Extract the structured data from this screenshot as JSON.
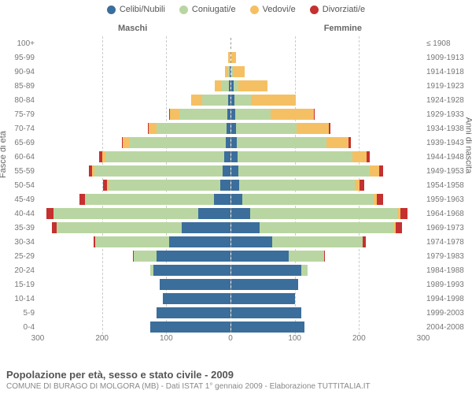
{
  "legend": [
    {
      "label": "Celibi/Nubili",
      "color": "#3b6e9b"
    },
    {
      "label": "Coniugati/e",
      "color": "#b9d6a2"
    },
    {
      "label": "Vedovi/e",
      "color": "#f5c063"
    },
    {
      "label": "Divorziati/e",
      "color": "#c53030"
    }
  ],
  "headers": {
    "male": "Maschi",
    "female": "Femmine"
  },
  "ylabels": {
    "left": "Fasce di età",
    "right": "Anni di nascita"
  },
  "xmax": 300,
  "xticks": [
    300,
    200,
    100,
    0,
    100,
    200,
    300
  ],
  "colors": {
    "single": "#3b6e9b",
    "married": "#b9d6a2",
    "widowed": "#f5c063",
    "divorced": "#c53030",
    "grid": "#cccccc",
    "axis_dash": "#999999",
    "background": "#ffffff"
  },
  "rows": [
    {
      "age": "100+",
      "year": "≤ 1908",
      "m": {
        "s": 0,
        "m": 0,
        "w": 0,
        "d": 0
      },
      "f": {
        "s": 0,
        "m": 0,
        "w": 0,
        "d": 0
      }
    },
    {
      "age": "95-99",
      "year": "1909-1913",
      "m": {
        "s": 0,
        "m": 0,
        "w": 3,
        "d": 0
      },
      "f": {
        "s": 0,
        "m": 0,
        "w": 8,
        "d": 0
      }
    },
    {
      "age": "90-94",
      "year": "1914-1918",
      "m": {
        "s": 1,
        "m": 2,
        "w": 5,
        "d": 0
      },
      "f": {
        "s": 1,
        "m": 2,
        "w": 18,
        "d": 0
      }
    },
    {
      "age": "85-89",
      "year": "1919-1923",
      "m": {
        "s": 2,
        "m": 12,
        "w": 10,
        "d": 0
      },
      "f": {
        "s": 4,
        "m": 8,
        "w": 45,
        "d": 0
      }
    },
    {
      "age": "80-84",
      "year": "1924-1928",
      "m": {
        "s": 3,
        "m": 40,
        "w": 18,
        "d": 0
      },
      "f": {
        "s": 6,
        "m": 25,
        "w": 70,
        "d": 0
      }
    },
    {
      "age": "75-79",
      "year": "1929-1933",
      "m": {
        "s": 4,
        "m": 75,
        "w": 15,
        "d": 1
      },
      "f": {
        "s": 7,
        "m": 55,
        "w": 68,
        "d": 1
      }
    },
    {
      "age": "70-74",
      "year": "1934-1938",
      "m": {
        "s": 5,
        "m": 110,
        "w": 12,
        "d": 1
      },
      "f": {
        "s": 8,
        "m": 95,
        "w": 50,
        "d": 2
      }
    },
    {
      "age": "65-69",
      "year": "1939-1943",
      "m": {
        "s": 7,
        "m": 150,
        "w": 10,
        "d": 2
      },
      "f": {
        "s": 9,
        "m": 140,
        "w": 35,
        "d": 3
      }
    },
    {
      "age": "60-64",
      "year": "1944-1948",
      "m": {
        "s": 9,
        "m": 185,
        "w": 6,
        "d": 4
      },
      "f": {
        "s": 10,
        "m": 180,
        "w": 22,
        "d": 5
      }
    },
    {
      "age": "55-59",
      "year": "1949-1953",
      "m": {
        "s": 12,
        "m": 200,
        "w": 3,
        "d": 5
      },
      "f": {
        "s": 12,
        "m": 205,
        "w": 14,
        "d": 7
      }
    },
    {
      "age": "50-54",
      "year": "1954-1958",
      "m": {
        "s": 15,
        "m": 175,
        "w": 2,
        "d": 6
      },
      "f": {
        "s": 13,
        "m": 180,
        "w": 8,
        "d": 7
      }
    },
    {
      "age": "45-49",
      "year": "1959-1963",
      "m": {
        "s": 25,
        "m": 200,
        "w": 1,
        "d": 9
      },
      "f": {
        "s": 18,
        "m": 205,
        "w": 5,
        "d": 10
      }
    },
    {
      "age": "40-44",
      "year": "1964-1968",
      "m": {
        "s": 50,
        "m": 225,
        "w": 1,
        "d": 10
      },
      "f": {
        "s": 30,
        "m": 230,
        "w": 4,
        "d": 12
      }
    },
    {
      "age": "35-39",
      "year": "1969-1973",
      "m": {
        "s": 75,
        "m": 195,
        "w": 0,
        "d": 8
      },
      "f": {
        "s": 45,
        "m": 210,
        "w": 2,
        "d": 10
      }
    },
    {
      "age": "30-34",
      "year": "1974-1978",
      "m": {
        "s": 95,
        "m": 115,
        "w": 0,
        "d": 3
      },
      "f": {
        "s": 65,
        "m": 140,
        "w": 1,
        "d": 4
      }
    },
    {
      "age": "25-29",
      "year": "1979-1983",
      "m": {
        "s": 115,
        "m": 35,
        "w": 0,
        "d": 1
      },
      "f": {
        "s": 90,
        "m": 55,
        "w": 0,
        "d": 1
      }
    },
    {
      "age": "20-24",
      "year": "1984-1988",
      "m": {
        "s": 120,
        "m": 5,
        "w": 0,
        "d": 0
      },
      "f": {
        "s": 110,
        "m": 10,
        "w": 0,
        "d": 0
      }
    },
    {
      "age": "15-19",
      "year": "1989-1993",
      "m": {
        "s": 110,
        "m": 0,
        "w": 0,
        "d": 0
      },
      "f": {
        "s": 105,
        "m": 0,
        "w": 0,
        "d": 0
      }
    },
    {
      "age": "10-14",
      "year": "1994-1998",
      "m": {
        "s": 105,
        "m": 0,
        "w": 0,
        "d": 0
      },
      "f": {
        "s": 100,
        "m": 0,
        "w": 0,
        "d": 0
      }
    },
    {
      "age": "5-9",
      "year": "1999-2003",
      "m": {
        "s": 115,
        "m": 0,
        "w": 0,
        "d": 0
      },
      "f": {
        "s": 110,
        "m": 0,
        "w": 0,
        "d": 0
      }
    },
    {
      "age": "0-4",
      "year": "2004-2008",
      "m": {
        "s": 125,
        "m": 0,
        "w": 0,
        "d": 0
      },
      "f": {
        "s": 115,
        "m": 0,
        "w": 0,
        "d": 0
      }
    }
  ],
  "footer": {
    "title": "Popolazione per età, sesso e stato civile - 2009",
    "sub": "COMUNE DI BURAGO DI MOLGORA (MB) - Dati ISTAT 1° gennaio 2009 - Elaborazione TUTTITALIA.IT"
  }
}
